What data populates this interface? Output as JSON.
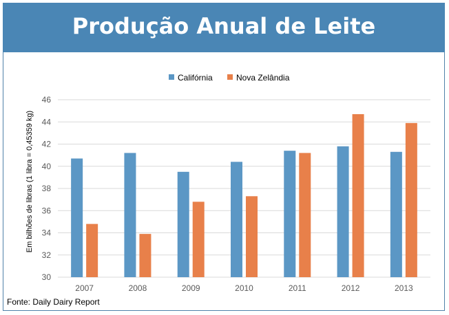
{
  "chart_data": {
    "type": "bar",
    "title": "Produção Anual de Leite",
    "xlabel": "",
    "ylabel": "Em bilhões de libras (1 libra = 0,45359 kg)",
    "ylim": [
      30,
      46
    ],
    "yticks": [
      30,
      32,
      34,
      36,
      38,
      40,
      42,
      44,
      46
    ],
    "grid": true,
    "legend_position": "top-center",
    "categories": [
      "2007",
      "2008",
      "2009",
      "2010",
      "2011",
      "2012",
      "2013"
    ],
    "series": [
      {
        "name": "Califórnia",
        "color": "#5b97c5",
        "values": [
          40.7,
          41.2,
          39.5,
          40.4,
          41.4,
          41.8,
          41.3
        ]
      },
      {
        "name": "Nova Zelândia",
        "color": "#e8804a",
        "values": [
          34.8,
          33.9,
          36.8,
          37.3,
          41.2,
          44.7,
          43.9
        ]
      }
    ],
    "source": "Fonte:  Daily Dairy Report"
  }
}
